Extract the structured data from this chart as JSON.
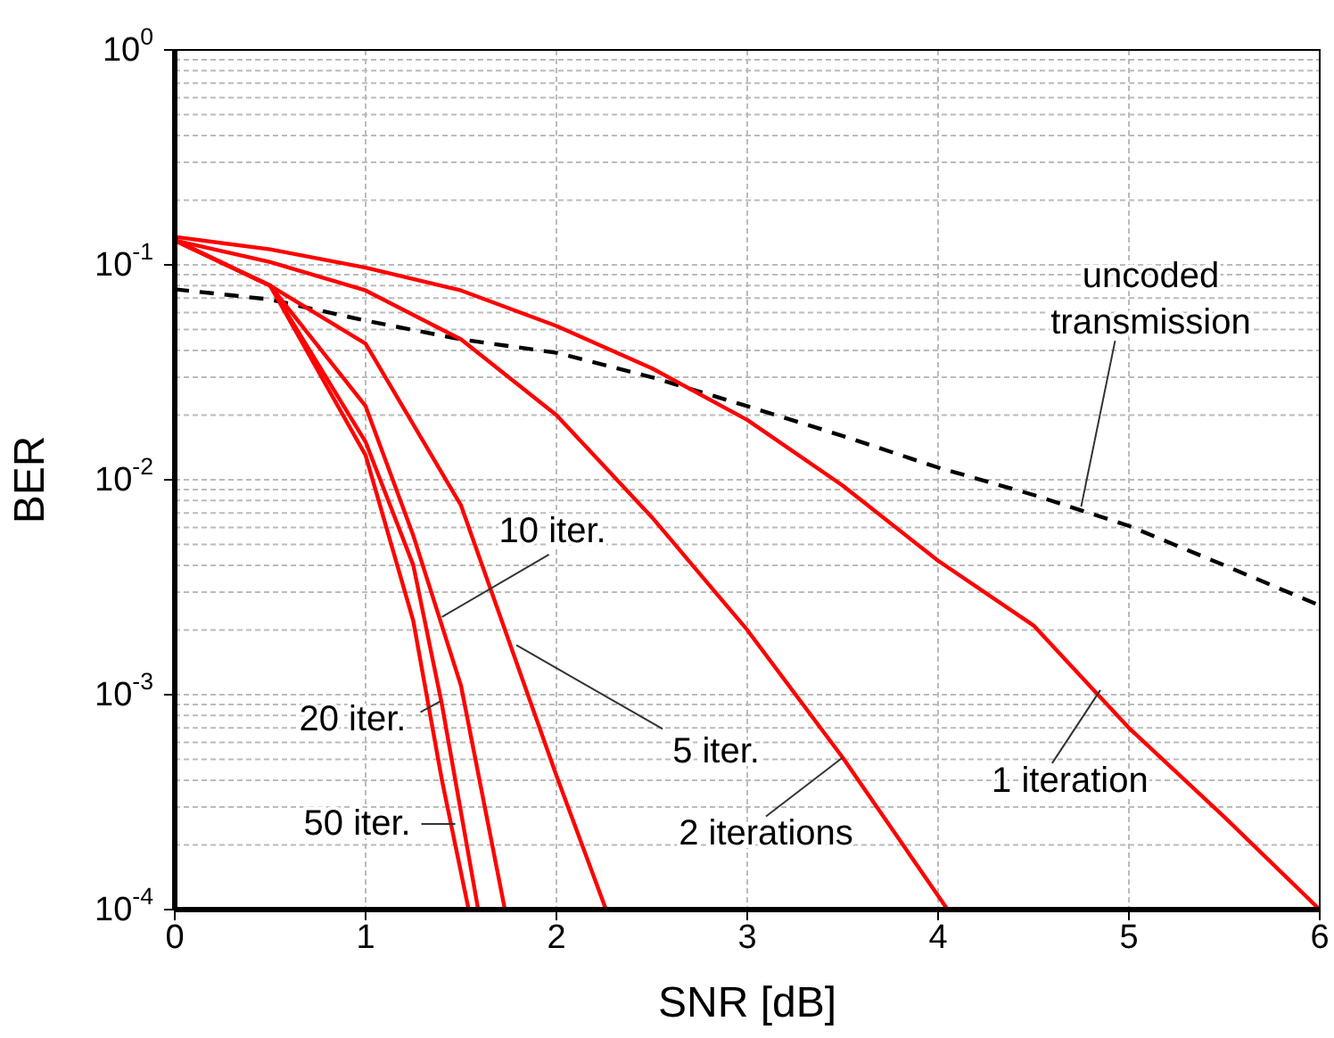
{
  "chart_data": {
    "type": "line",
    "xlabel": "SNR [dB]",
    "ylabel": "BER",
    "log": "y",
    "grid": true,
    "marker": "none",
    "xlim": [
      0,
      6
    ],
    "xticks": [
      0,
      1,
      2,
      3,
      4,
      5,
      6
    ],
    "ylim": [
      0.0001,
      1
    ],
    "yticks": [
      {
        "value": 0.0001,
        "label": "10$^{-4}$"
      },
      {
        "value": 0.001,
        "label": "10$^{-3}$"
      },
      {
        "value": 0.01,
        "label": "10$^{-2}$"
      },
      {
        "value": 0.1,
        "label": "10$^{-1}$"
      },
      {
        "value": 1,
        "label": "10$^{0}$"
      }
    ],
    "series": [
      {
        "color": "#000000",
        "line_style": "dashed",
        "x": [
          0,
          0.5,
          1,
          1.5,
          2,
          2.5,
          3,
          3.5,
          4,
          4.5,
          5,
          5.5,
          6
        ],
        "values": [
          0.077,
          0.069,
          0.055,
          0.045,
          0.039,
          0.03,
          0.022,
          0.016,
          0.0114,
          0.0085,
          0.0061,
          0.004,
          0.0026
        ]
      },
      {
        "color": "#ff0000",
        "line_style": "solid",
        "x": [
          0,
          0.5,
          1,
          1.5,
          2,
          2.5,
          3,
          3.5,
          4,
          4.5,
          5,
          5.5,
          6
        ],
        "values": [
          0.135,
          0.118,
          0.097,
          0.076,
          0.052,
          0.033,
          0.019,
          0.0094,
          0.0042,
          0.0021,
          0.0007,
          0.00027,
          0.0001
        ]
      },
      {
        "color": "#ff0000",
        "line_style": "solid",
        "x": [
          0,
          0.5,
          1,
          1.5,
          2,
          2.5,
          3,
          3.5,
          4.05
        ],
        "values": [
          0.13,
          0.103,
          0.076,
          0.045,
          0.02,
          0.0067,
          0.002,
          0.00051,
          0.0001
        ]
      },
      {
        "color": "#ff0000",
        "line_style": "solid",
        "x": [
          0,
          0.5,
          1,
          1.5,
          2,
          2.26
        ],
        "values": [
          0.13,
          0.08,
          0.043,
          0.0076,
          0.00042,
          0.0001
        ]
      },
      {
        "color": "#ff0000",
        "line_style": "solid",
        "x": [
          0,
          0.5,
          1,
          1.25,
          1.5,
          1.73
        ],
        "values": [
          0.13,
          0.08,
          0.022,
          0.0055,
          0.0011,
          0.0001
        ]
      },
      {
        "color": "#ff0000",
        "line_style": "solid",
        "x": [
          0,
          0.5,
          1,
          1.25,
          1.4,
          1.59
        ],
        "values": [
          0.13,
          0.08,
          0.015,
          0.004,
          0.0009,
          0.0001
        ]
      },
      {
        "color": "#ff0000",
        "line_style": "solid",
        "x": [
          0,
          0.5,
          1,
          1.25,
          1.4,
          1.54
        ],
        "values": [
          0.13,
          0.08,
          0.013,
          0.0022,
          0.0004,
          0.0001
        ]
      }
    ],
    "annotations": [
      {
        "text": "uncoded transmission",
        "x": 4.75,
        "y": 0.0075
      },
      {
        "text": "1 iteration",
        "x": 4.85,
        "y": 0.00105
      },
      {
        "text": "2 iterations",
        "x": 3.5,
        "y": 0.00051
      },
      {
        "text": "5 iter.",
        "x": 1.79,
        "y": 0.0017
      },
      {
        "text": "10 iter.",
        "x": 1.4,
        "y": 0.0023
      },
      {
        "text": "20 iter.",
        "x": 1.39,
        "y": 0.00093
      },
      {
        "text": "50 iter.",
        "x": 1.47,
        "y": 0.00025
      }
    ]
  }
}
